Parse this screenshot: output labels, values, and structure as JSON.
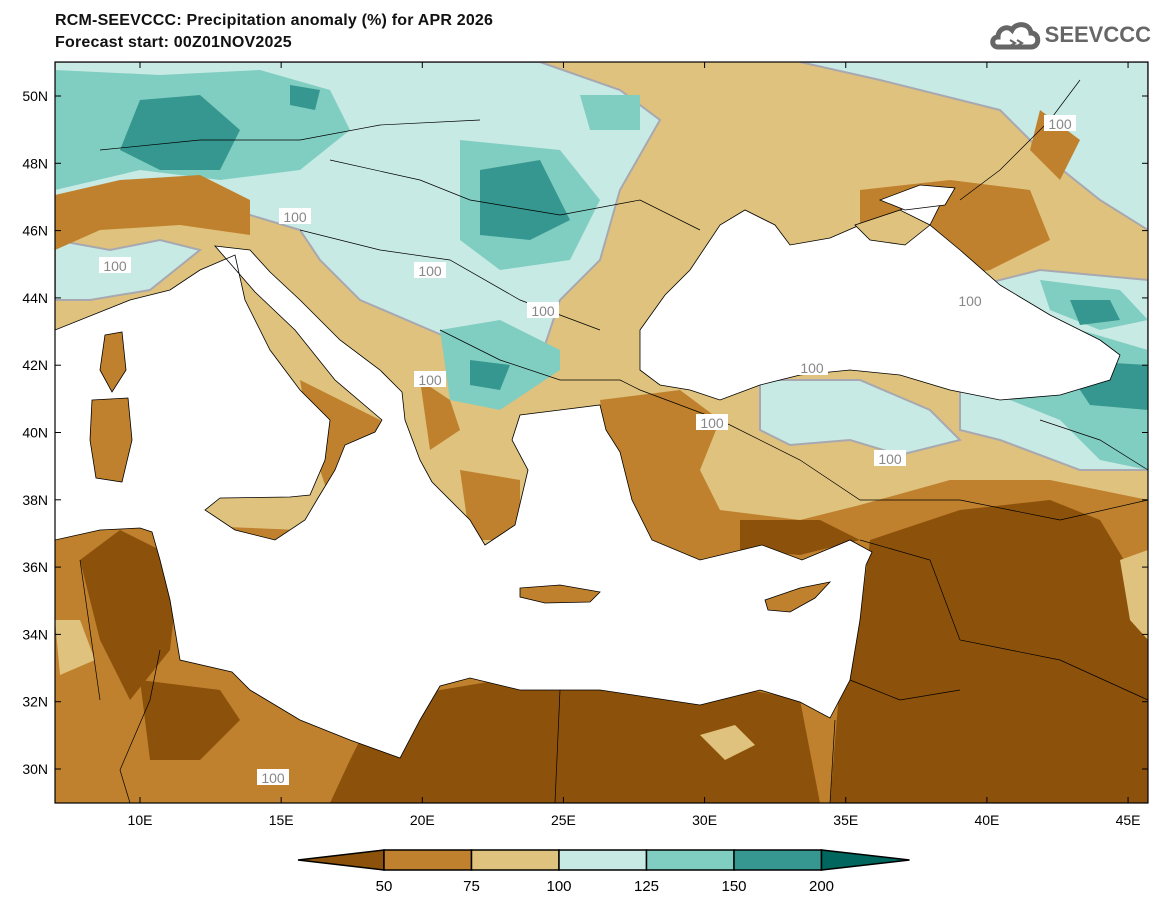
{
  "header": {
    "title": "RCM-SEEVCCC: Precipitation anomaly (%) for APR 2026",
    "subtitle": "Forecast start: 00Z01NOV2025"
  },
  "logo": {
    "text": "SEEVCCC",
    "icon": "cloud-icon"
  },
  "map": {
    "lat_labels": [
      "50N",
      "48N",
      "46N",
      "44N",
      "42N",
      "40N",
      "38N",
      "36N",
      "34N",
      "32N",
      "30N"
    ],
    "lon_labels": [
      "10E",
      "15E",
      "20E",
      "25E",
      "30E",
      "35E",
      "40E",
      "45E"
    ],
    "contour_labels": [
      "100",
      "100",
      "100",
      "100",
      "100",
      "100",
      "100",
      "100",
      "100",
      "100",
      "100"
    ]
  },
  "colorbar": {
    "colors": [
      "#8c510a",
      "#bf812d",
      "#dfc27d",
      "#c7eae5",
      "#80cdc1",
      "#35978f",
      "#01665e"
    ],
    "labels": [
      "50",
      "75",
      "100",
      "125",
      "150",
      "200"
    ]
  }
}
